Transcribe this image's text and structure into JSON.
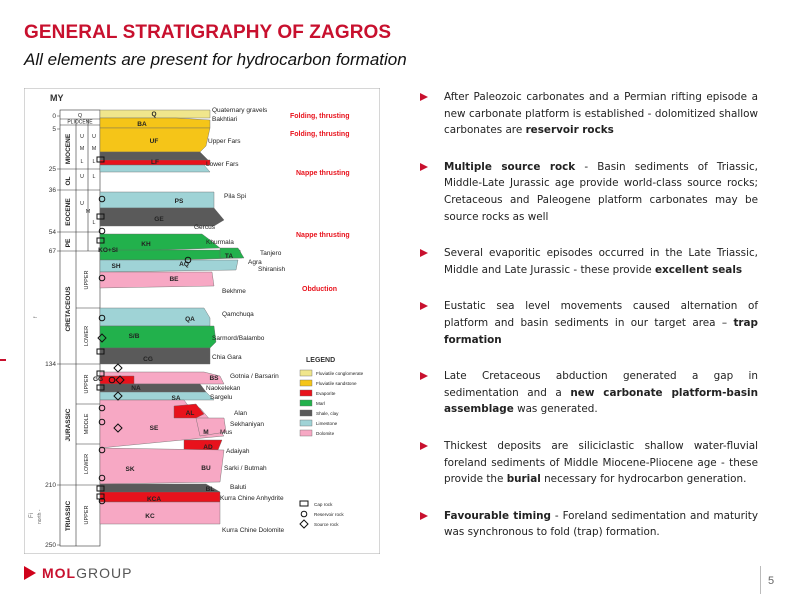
{
  "header": {
    "title": "GENERAL STRATIGRAPHY OF ZAGROS",
    "subtitle": "All elements are present for hydrocarbon formation"
  },
  "figure": {
    "axis_label": "MY",
    "ages": [
      {
        "value": "0"
      },
      {
        "value": "5"
      },
      {
        "value": "25"
      },
      {
        "value": "36"
      },
      {
        "value": "54"
      },
      {
        "value": "67"
      },
      {
        "value": "134"
      },
      {
        "value": "210"
      },
      {
        "value": "250"
      }
    ],
    "periods": [
      {
        "label": "PLIOCENE"
      },
      {
        "label": "MIOCENE"
      },
      {
        "label": "OL"
      },
      {
        "label": "EOCENE"
      },
      {
        "label": "PE"
      },
      {
        "label": "CRETACEOUS"
      },
      {
        "label": "JURASSIC"
      },
      {
        "label": "TRIASSIC"
      }
    ],
    "subdivisions": [
      {
        "label": "Q"
      },
      {
        "label": "U"
      },
      {
        "label": "M"
      },
      {
        "label": "L"
      },
      {
        "label": "U"
      },
      {
        "label": "M"
      },
      {
        "label": "L"
      },
      {
        "label": "U"
      },
      {
        "label": "L"
      },
      {
        "label": "U"
      },
      {
        "label": "M"
      },
      {
        "label": "L"
      },
      {
        "label": "UPPER"
      },
      {
        "label": "LOWER"
      },
      {
        "label": "UPPER"
      },
      {
        "label": "MIDDLE"
      },
      {
        "label": "LOWER"
      },
      {
        "label": "UPPER"
      }
    ],
    "codes": [
      {
        "text": "Q"
      },
      {
        "text": "BA"
      },
      {
        "text": "UF"
      },
      {
        "text": "LF"
      },
      {
        "text": "PS"
      },
      {
        "text": "GE"
      },
      {
        "text": "KH"
      },
      {
        "text": "KO+SI"
      },
      {
        "text": "AQ"
      },
      {
        "text": "TA"
      },
      {
        "text": "SH"
      },
      {
        "text": "BE"
      },
      {
        "text": "QA"
      },
      {
        "text": "S/B"
      },
      {
        "text": "CG"
      },
      {
        "text": "GG"
      },
      {
        "text": "BS"
      },
      {
        "text": "NA"
      },
      {
        "text": "SA"
      },
      {
        "text": "AL"
      },
      {
        "text": "SE"
      },
      {
        "text": "M"
      },
      {
        "text": "AD"
      },
      {
        "text": "BU"
      },
      {
        "text": "SK"
      },
      {
        "text": "BL"
      },
      {
        "text": "KCA"
      },
      {
        "text": "KC"
      }
    ],
    "formations": [
      {
        "name": "Quaternary gravels"
      },
      {
        "name": "Bakhtiari"
      },
      {
        "name": "Upper Fars"
      },
      {
        "name": "Lower Fars"
      },
      {
        "name": "Pila Spi"
      },
      {
        "name": "Gercus"
      },
      {
        "name": "Khurmala"
      },
      {
        "name": "Tanjero"
      },
      {
        "name": "Agra"
      },
      {
        "name": "Shiranish"
      },
      {
        "name": "Bekhme"
      },
      {
        "name": "Qamchuqa"
      },
      {
        "name": "Sarmord/Balambo"
      },
      {
        "name": "Chia Gara"
      },
      {
        "name": "Gotnia / Barsarin"
      },
      {
        "name": "Naokelekan"
      },
      {
        "name": "Sargelu"
      },
      {
        "name": "Alan"
      },
      {
        "name": "Sekhaniyan"
      },
      {
        "name": "Mus"
      },
      {
        "name": "Adaiyah"
      },
      {
        "name": "Sarki / Butmah"
      },
      {
        "name": "Baluti"
      },
      {
        "name": "Kurra Chine Anhydrite"
      },
      {
        "name": "Kurra Chine Dolomite"
      }
    ],
    "events": [
      {
        "label": "Folding, thrusting"
      },
      {
        "label": "Folding, thrusting"
      },
      {
        "label": "Nappe thrusting"
      },
      {
        "label": "Nappe thrusting"
      },
      {
        "label": "Obduction"
      }
    ],
    "legend": {
      "title": "LEGEND",
      "lithology": [
        {
          "label": "Fluviatile conglomerate",
          "color": "#f0e68c"
        },
        {
          "label": "Fluviatile sandstone",
          "color": "#f5c518"
        },
        {
          "label": "Evaporite",
          "color": "#e8121c"
        },
        {
          "label": "Marl",
          "color": "#22b14c"
        },
        {
          "label": "Shale, clay",
          "color": "#5a5a5a"
        },
        {
          "label": "Limestone",
          "color": "#9fd3d6"
        },
        {
          "label": "Dolomite",
          "color": "#f7a8c4"
        }
      ],
      "symbols": [
        {
          "label": "Cap rock"
        },
        {
          "label": "Reservoir rock"
        },
        {
          "label": "Source rock"
        }
      ]
    },
    "side_text": [
      "Fi",
      "north -",
      "f"
    ]
  },
  "bullets": [
    {
      "segments": [
        {
          "text": "After Paleozoic carbonates and a Permian rifting episode a new carbonate platform is established - dolomitized shallow carbonates are ",
          "bold": false
        },
        {
          "text": "reservoir rocks",
          "bold": true
        }
      ]
    },
    {
      "segments": [
        {
          "text": "Multiple source rock",
          "bold": true
        },
        {
          "text": " - Basin sediments of Triassic, Middle-Late Jurassic age provide world-class source rocks; Cretaceous and Paleogene platform carbonates may be source rocks as well",
          "bold": false
        }
      ]
    },
    {
      "segments": [
        {
          "text": "Several evaporitic episodes occurred in the Late Triassic, Middle and Late Jurassic - these provide ",
          "bold": false
        },
        {
          "text": "excellent seals",
          "bold": true
        }
      ]
    },
    {
      "segments": [
        {
          "text": "Eustatic sea level movements caused alternation of platform and basin sediments in our target area – ",
          "bold": false
        },
        {
          "text": "trap formation",
          "bold": true
        }
      ]
    },
    {
      "segments": [
        {
          "text": " Late Cretaceous abduction generated a gap in sedimentation and a ",
          "bold": false
        },
        {
          "text": "new carbonate platform-basin assemblage",
          "bold": true
        },
        {
          "text": " was generated.",
          "bold": false
        }
      ]
    },
    {
      "segments": [
        {
          "text": "Thickest deposits are siliciclastic shallow water-fluvial foreland sediments of Middle Miocene-Pliocene age - these provide the ",
          "bold": false
        },
        {
          "text": "burial",
          "bold": true
        },
        {
          "text": " necessary for hydrocarbon generation.",
          "bold": false
        }
      ]
    },
    {
      "segments": [
        {
          "text": " Favourable timing",
          "bold": true
        },
        {
          "text": " - Foreland sedimentation and maturity was synchronous to fold (trap) formation.",
          "bold": false
        }
      ]
    }
  ],
  "footer": {
    "logo_mol": "MOL",
    "logo_group": "GROUP",
    "page": "5"
  }
}
